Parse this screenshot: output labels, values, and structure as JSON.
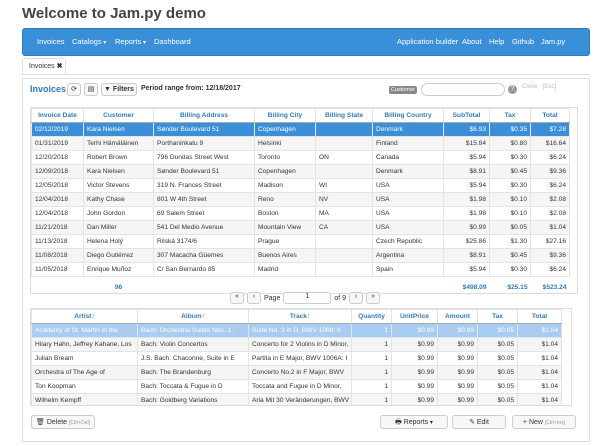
{
  "header": {
    "title": "Welcome to Jam.py demo"
  },
  "nav": {
    "left": [
      "Invoices",
      "Catalogs",
      "Reports",
      "Dashboard"
    ],
    "right": [
      "Application builder",
      "About",
      "Help",
      "Github",
      "Jam.py"
    ]
  },
  "tab": "Invoices",
  "toolbar": {
    "title": "Invoices",
    "filters": "Filters",
    "period": "Period range from: 12/18/2017",
    "search_label": "Customer",
    "help": "?",
    "close": "Close - [Esc]"
  },
  "invoices": {
    "columns": [
      "Invoice Date",
      "Customer",
      "Billing Address",
      "Billing City",
      "Billing State",
      "Billing Country",
      "SubTotal",
      "Tax",
      "Total"
    ],
    "rows": [
      [
        "02/12/2019",
        "Kara Nielsen",
        "Sønder Boulevard 51",
        "Copenhagen",
        null,
        "Denmark",
        "$6.93",
        "$0.35",
        "$7.28"
      ],
      [
        "01/31/2019",
        "Terhi Hämäläinen",
        "Porthaninkatu 9",
        "Helsinki",
        null,
        "Finland",
        "$15.84",
        "$0.80",
        "$16.64"
      ],
      [
        "12/20/2018",
        "Robert Brown",
        "796 Dundas Street West",
        "Toronto",
        "ON",
        "Canada",
        "$5.94",
        "$0.30",
        "$6.24"
      ],
      [
        "12/09/2018",
        "Kara Nielsen",
        "Sønder Boulevard 51",
        "Copenhagen",
        null,
        "Denmark",
        "$8.91",
        "$0.45",
        "$9.36"
      ],
      [
        "12/05/2018",
        "Victor Stevens",
        "319 N. Frances Street",
        "Madison",
        "WI",
        "USA",
        "$5.94",
        "$0.30",
        "$6.24"
      ],
      [
        "12/04/2018",
        "Kathy Chase",
        "801 W 4th Street",
        "Reno",
        "NV",
        "USA",
        "$1.98",
        "$0.10",
        "$2.08"
      ],
      [
        "12/04/2018",
        "John Gordon",
        "69 Salem Street",
        "Boston",
        "MA",
        "USA",
        "$1.98",
        "$0.10",
        "$2.08"
      ],
      [
        "11/21/2018",
        "Dan Miller",
        "541 Del Medio Avenue",
        "Mountain View",
        "CA",
        "USA",
        "$0.99",
        "$0.05",
        "$1.04"
      ],
      [
        "11/13/2018",
        "Helena Holý",
        "Rilská 3174/6",
        "Prague",
        null,
        "Czech Republic",
        "$25.86",
        "$1.30",
        "$27.16"
      ],
      [
        "11/08/2018",
        "Diego Gutiérrez",
        "307 Macacha Güemes",
        "Buenos Aires",
        null,
        "Argentina",
        "$8.91",
        "$0.45",
        "$9.36"
      ],
      [
        "11/05/2018",
        "Enrique Muñoz",
        "C/ San Bernardo 85",
        "Madrid",
        null,
        "Spain",
        "$5.94",
        "$0.30",
        "$6.24"
      ]
    ],
    "footer": [
      null,
      "96",
      null,
      null,
      null,
      null,
      "$498.09",
      "$25.15",
      "$523.24"
    ]
  },
  "pager": {
    "label": "Page",
    "page": "1",
    "of": "of 9"
  },
  "items": {
    "columns": [
      "Artist↑",
      "Album↑",
      "Track↑",
      "Quantity",
      "UnitPrice",
      "Amount",
      "Tax",
      "Total"
    ],
    "rows": [
      [
        "Academy of St. Martin in the",
        "Bach: Orchestral Suites Nos. 1 -",
        "Suite No. 3 in D, BWV 1068: II",
        "1",
        "$0.99",
        "$0.99",
        "$0.05",
        "$1.04"
      ],
      [
        "Hilary Hahn, Jeffrey Kahane, Los",
        "Bach: Violin Concertos",
        "Concerto for 2 Violins in D Minor,",
        "1",
        "$0.99",
        "$0.99",
        "$0.05",
        "$1.04"
      ],
      [
        "Julian Bream",
        "J.S. Bach: Chaconne, Suite in E",
        "Partita in E Major, BWV 1006A: I",
        "1",
        "$0.99",
        "$0.99",
        "$0.05",
        "$1.04"
      ],
      [
        "Orchestra of The Age of",
        "Bach: The Brandenburg",
        "Concerto No.2 in F Major, BWV",
        "1",
        "$0.99",
        "$0.99",
        "$0.05",
        "$1.04"
      ],
      [
        "Ton Koopman",
        "Bach: Toccata & Fugue in D",
        "Toccata and Fugue in D Minor,",
        "1",
        "$0.99",
        "$0.99",
        "$0.05",
        "$1.04"
      ],
      [
        "Wilhelm Kempff",
        "Bach: Goldberg Variations",
        "Aria Mit 30 Veränderungen, BWV",
        "1",
        "$0.99",
        "$0.99",
        "$0.05",
        "$1.04"
      ]
    ]
  },
  "buttons": {
    "delete": "Delete",
    "delete_key": "[Ctrl+Del]",
    "reports": "Reports",
    "edit": "Edit",
    "new": "New",
    "new_key": "[Ctrl+Ins]"
  }
}
